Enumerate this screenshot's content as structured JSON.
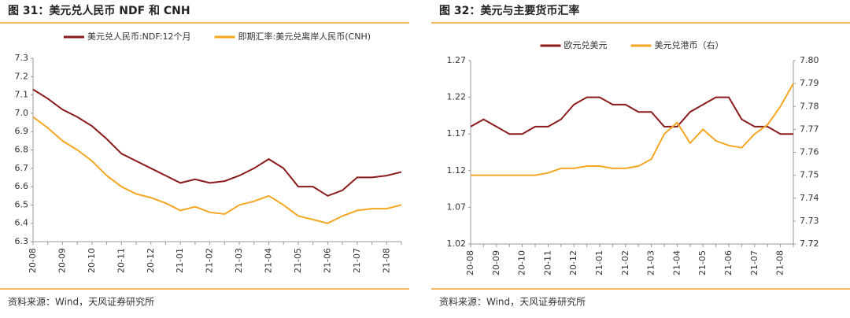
{
  "chart_data": [
    {
      "type": "line",
      "title": "图 31：美元兑人民币 NDF 和 CNH",
      "source": "资料来源：Wind，天风证券研究所",
      "categories": [
        "20-08",
        null,
        "20-09",
        null,
        "20-10",
        null,
        "20-11",
        null,
        "20-12",
        null,
        "21-01",
        null,
        "21-02",
        null,
        "21-03",
        null,
        "21-04",
        null,
        "21-05",
        null,
        "21-06",
        null,
        "21-07",
        null,
        "21-08",
        null
      ],
      "series": [
        {
          "name": "美元兑人民币:NDF:12个月",
          "color": "#8b1a1a",
          "values": [
            7.13,
            7.08,
            7.02,
            6.98,
            6.93,
            6.86,
            6.78,
            6.74,
            6.7,
            6.66,
            6.62,
            6.64,
            6.62,
            6.63,
            6.66,
            6.7,
            6.75,
            6.7,
            6.6,
            6.6,
            6.55,
            6.58,
            6.65,
            6.65,
            6.66,
            6.68
          ]
        },
        {
          "name": "即期汇率:美元兑离岸人民币(CNH)",
          "color": "#f5a623",
          "values": [
            6.98,
            6.92,
            6.85,
            6.8,
            6.74,
            6.66,
            6.6,
            6.56,
            6.54,
            6.51,
            6.47,
            6.49,
            6.46,
            6.45,
            6.5,
            6.52,
            6.55,
            6.5,
            6.44,
            6.42,
            6.4,
            6.44,
            6.47,
            6.48,
            6.48,
            6.5
          ]
        }
      ],
      "ylim": [
        6.3,
        7.3
      ],
      "yticks": [
        6.3,
        6.4,
        6.5,
        6.6,
        6.7,
        6.8,
        6.9,
        {
          "value": 7,
          "label": "7.0"
        },
        7.1,
        7.2,
        7.3
      ],
      "grid": false,
      "legend": "top"
    },
    {
      "type": "line",
      "title": "图 32：美元与主要货币汇率",
      "source": "资料来源：Wind，天风证券研究所",
      "categories": [
        "20-08",
        null,
        "20-09",
        null,
        "20-10",
        null,
        "20-11",
        null,
        "20-12",
        null,
        "21-01",
        null,
        "21-02",
        null,
        "21-03",
        null,
        "21-04",
        null,
        "21-05",
        null,
        "21-06",
        null,
        "21-07",
        null,
        "21-08",
        null
      ],
      "series": [
        {
          "name": "欧元兑美元",
          "color": "#8b1a1a",
          "values": [
            1.18,
            1.19,
            1.18,
            1.17,
            1.17,
            1.18,
            1.18,
            1.19,
            1.21,
            1.22,
            1.22,
            1.21,
            1.21,
            1.2,
            1.2,
            1.18,
            1.18,
            1.2,
            1.21,
            1.22,
            1.22,
            1.19,
            1.18,
            1.18,
            1.17,
            1.17
          ]
        },
        {
          "name": "美元兑港币（右）",
          "color": "#f5a623",
          "axis": "y2",
          "values": [
            7.75,
            7.75,
            7.75,
            7.75,
            7.75,
            7.75,
            7.751,
            7.753,
            7.753,
            7.754,
            7.754,
            7.753,
            7.753,
            7.754,
            7.757,
            7.768,
            7.773,
            7.764,
            7.77,
            7.765,
            7.763,
            7.762,
            7.768,
            7.772,
            7.78,
            7.79
          ]
        }
      ],
      "ylim": [
        1.02,
        1.27
      ],
      "yticks": [
        1.02,
        1.07,
        1.12,
        1.17,
        1.22,
        1.27
      ],
      "y2lim": [
        7.72,
        7.8
      ],
      "y2ticks": [
        7.72,
        7.73,
        7.74,
        7.75,
        7.76,
        7.77,
        7.78,
        7.79,
        {
          "value": 7.8,
          "label": "7.80"
        }
      ],
      "grid": false,
      "legend": "top"
    }
  ]
}
